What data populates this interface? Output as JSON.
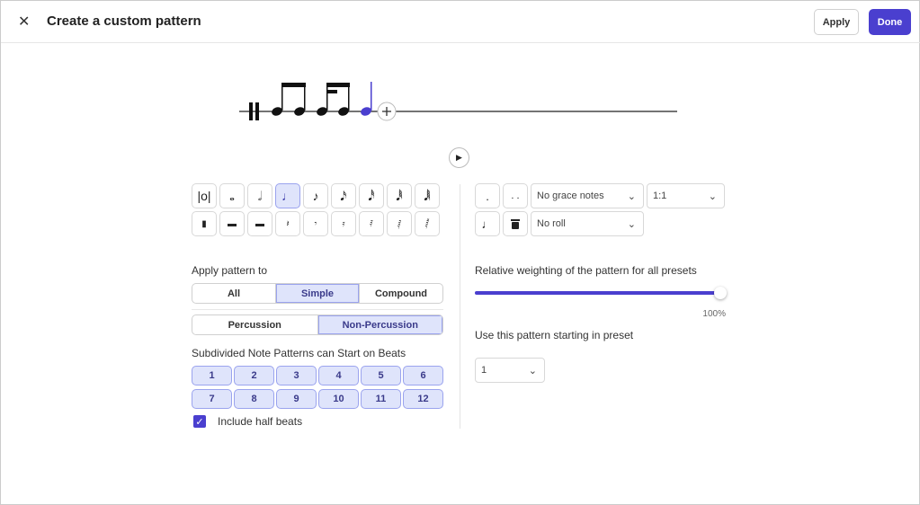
{
  "header": {
    "title": "Create a custom pattern",
    "close_icon": "close-icon",
    "apply": "Apply",
    "done": "Done"
  },
  "colors": {
    "accent": "#4a3fcf",
    "selected_bg": "#dfe4fb",
    "selected_border": "#9aa3ee"
  },
  "staff": {
    "add_icon": "plus-icon",
    "play_icon": "play-icon"
  },
  "durations": {
    "notes": [
      "double-whole",
      "whole",
      "half",
      "quarter",
      "eighth",
      "sixteenth",
      "32nd",
      "64th",
      "128th"
    ],
    "rests": [
      "double-whole-rest",
      "whole-rest",
      "half-rest",
      "quarter-rest",
      "eighth-rest",
      "sixteenth-rest",
      "32nd-rest",
      "64th-rest",
      "128th-rest"
    ],
    "selected": "quarter"
  },
  "modifiers": {
    "dot": ".",
    "double_dot": ". .",
    "grace": "No grace notes",
    "tuplet": "1:1",
    "roll": "No roll",
    "tie_icon": "tie-icon",
    "delete_icon": "trash-icon"
  },
  "apply": {
    "label": "Apply pattern to",
    "options": [
      "All",
      "Simple",
      "Compound"
    ],
    "selected": "Simple",
    "type_options": [
      "Percussion",
      "Non-Percussion"
    ],
    "type_selected": "Non-Percussion"
  },
  "beats": {
    "label": "Subdivided Note Patterns can Start on Beats",
    "values": [
      "1",
      "2",
      "3",
      "4",
      "5",
      "6",
      "7",
      "8",
      "9",
      "10",
      "11",
      "12"
    ],
    "include_half_beats": "Include half beats",
    "half_beats_checked": true
  },
  "weighting": {
    "label": "Relative weighting of the pattern for all presets",
    "value": 100,
    "value_text": "100%"
  },
  "preset": {
    "label": "Use this pattern starting in preset",
    "value": "1"
  }
}
